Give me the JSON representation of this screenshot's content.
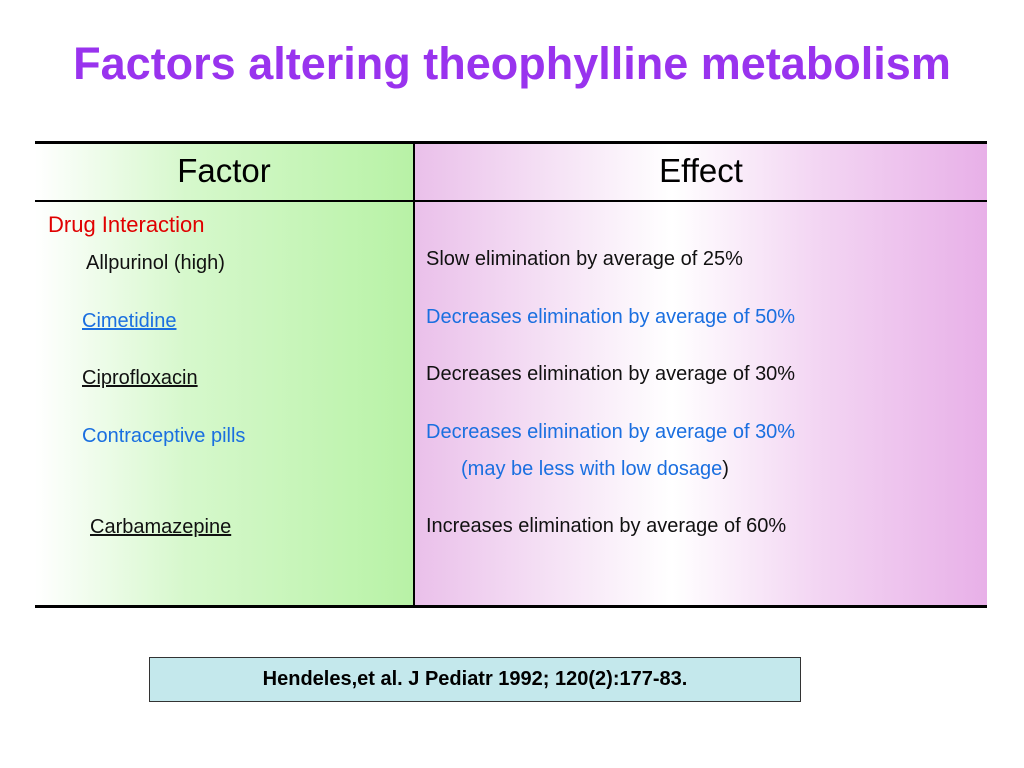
{
  "title": "Factors altering theophylline metabolism",
  "table": {
    "headers": {
      "factor": "Factor",
      "effect": "Effect"
    },
    "section_label": "Drug Interaction",
    "rows": [
      {
        "factor": "Allpurinol (high)",
        "effect": "Slow elimination by average of 25%"
      },
      {
        "factor": "Cimetidine",
        "effect": "Decreases elimination by average of 50%"
      },
      {
        "factor": "Ciprofloxacin",
        "effect": "Decreases elimination by average of 30%"
      },
      {
        "factor": "Contraceptive pills",
        "effect": "Decreases elimination by average of 30%",
        "note_main": "(may be less with low dosage",
        "note_close": ")"
      },
      {
        "factor": "Carbamazepine",
        "effect": "Increases elimination by average of 60%"
      }
    ]
  },
  "reference": "Hendeles,et al. J Pediatr 1992; 120(2):177-83.",
  "colors": {
    "title": "#9933ee",
    "section_label": "#e00000",
    "highlight_text": "#1a6fe0",
    "reference_bg": "#c4e8ec"
  }
}
